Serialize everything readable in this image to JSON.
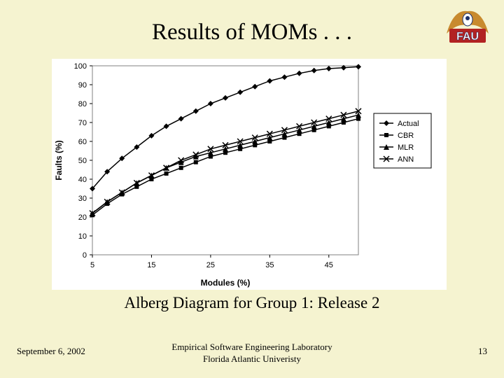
{
  "title": "Results of MOMs . . .",
  "subtitle": "Alberg Diagram for Group 1: Release 2",
  "footer": {
    "date": "September 6, 2002",
    "center_line1": "Empirical Software Engineering Laboratory",
    "center_line2": "Florida Atlantic Univeristy",
    "page": "13"
  },
  "chart": {
    "type": "line",
    "background_color": "#ffffff",
    "plot_border_color": "#808080",
    "grid_on": false,
    "xlabel": "Modules (%)",
    "ylabel": "Faults (%)",
    "label_fontsize": 12,
    "label_font": "Arial",
    "label_weight": "bold",
    "xlim": [
      5,
      50
    ],
    "ylim": [
      0,
      100
    ],
    "xtick_values": [
      5,
      15,
      25,
      35,
      45
    ],
    "ytick_values": [
      0,
      10,
      20,
      30,
      40,
      50,
      60,
      70,
      80,
      90,
      100
    ],
    "tick_font": "Arial",
    "tick_fontsize": 11,
    "tick_color": "#000000",
    "line_width": 1.5,
    "marker_size": 6,
    "series": [
      {
        "name": "Actual",
        "marker": "diamond",
        "color": "#000000",
        "x": [
          5,
          7.5,
          10,
          12.5,
          15,
          17.5,
          20,
          22.5,
          25,
          27.5,
          30,
          32.5,
          35,
          37.5,
          40,
          42.5,
          45,
          47.5,
          50
        ],
        "y": [
          35,
          44,
          51,
          57,
          63,
          68,
          72,
          76,
          80,
          83,
          86,
          89,
          92,
          94,
          96,
          97.5,
          98.5,
          99,
          99.5
        ]
      },
      {
        "name": "CBR",
        "marker": "square",
        "color": "#000000",
        "x": [
          5,
          7.5,
          10,
          12.5,
          15,
          17.5,
          20,
          22.5,
          25,
          27.5,
          30,
          32.5,
          35,
          37.5,
          40,
          42.5,
          45,
          47.5,
          50
        ],
        "y": [
          21,
          27,
          32,
          36,
          40,
          43,
          46,
          49,
          52,
          54,
          56,
          58,
          60,
          62,
          64,
          66,
          68,
          70,
          72
        ]
      },
      {
        "name": "MLR",
        "marker": "triangle",
        "color": "#000000",
        "x": [
          5,
          7.5,
          10,
          12.5,
          15,
          17.5,
          20,
          22.5,
          25,
          27.5,
          30,
          32.5,
          35,
          37.5,
          40,
          42.5,
          45,
          47.5,
          50
        ],
        "y": [
          22,
          28,
          33,
          38,
          42,
          46,
          49,
          52,
          54,
          56,
          58,
          60,
          62,
          64,
          66,
          68,
          70,
          72,
          74
        ]
      },
      {
        "name": "ANN",
        "marker": "x",
        "color": "#000000",
        "x": [
          5,
          7.5,
          10,
          12.5,
          15,
          17.5,
          20,
          22.5,
          25,
          27.5,
          30,
          32.5,
          35,
          37.5,
          40,
          42.5,
          45,
          47.5,
          50
        ],
        "y": [
          22,
          28,
          33,
          38,
          42,
          46,
          50,
          53,
          56,
          58,
          60,
          62,
          64,
          66,
          68,
          70,
          72,
          74,
          76
        ]
      }
    ],
    "legend": {
      "position": "right",
      "border_color": "#000000",
      "background": "#ffffff",
      "fontsize": 11,
      "font": "Arial"
    }
  },
  "logo": {
    "text_top": "FAU",
    "colors": {
      "wing": "#c88a2e",
      "red": "#b22222",
      "blue": "#1a2f6b",
      "white": "#ffffff"
    }
  }
}
